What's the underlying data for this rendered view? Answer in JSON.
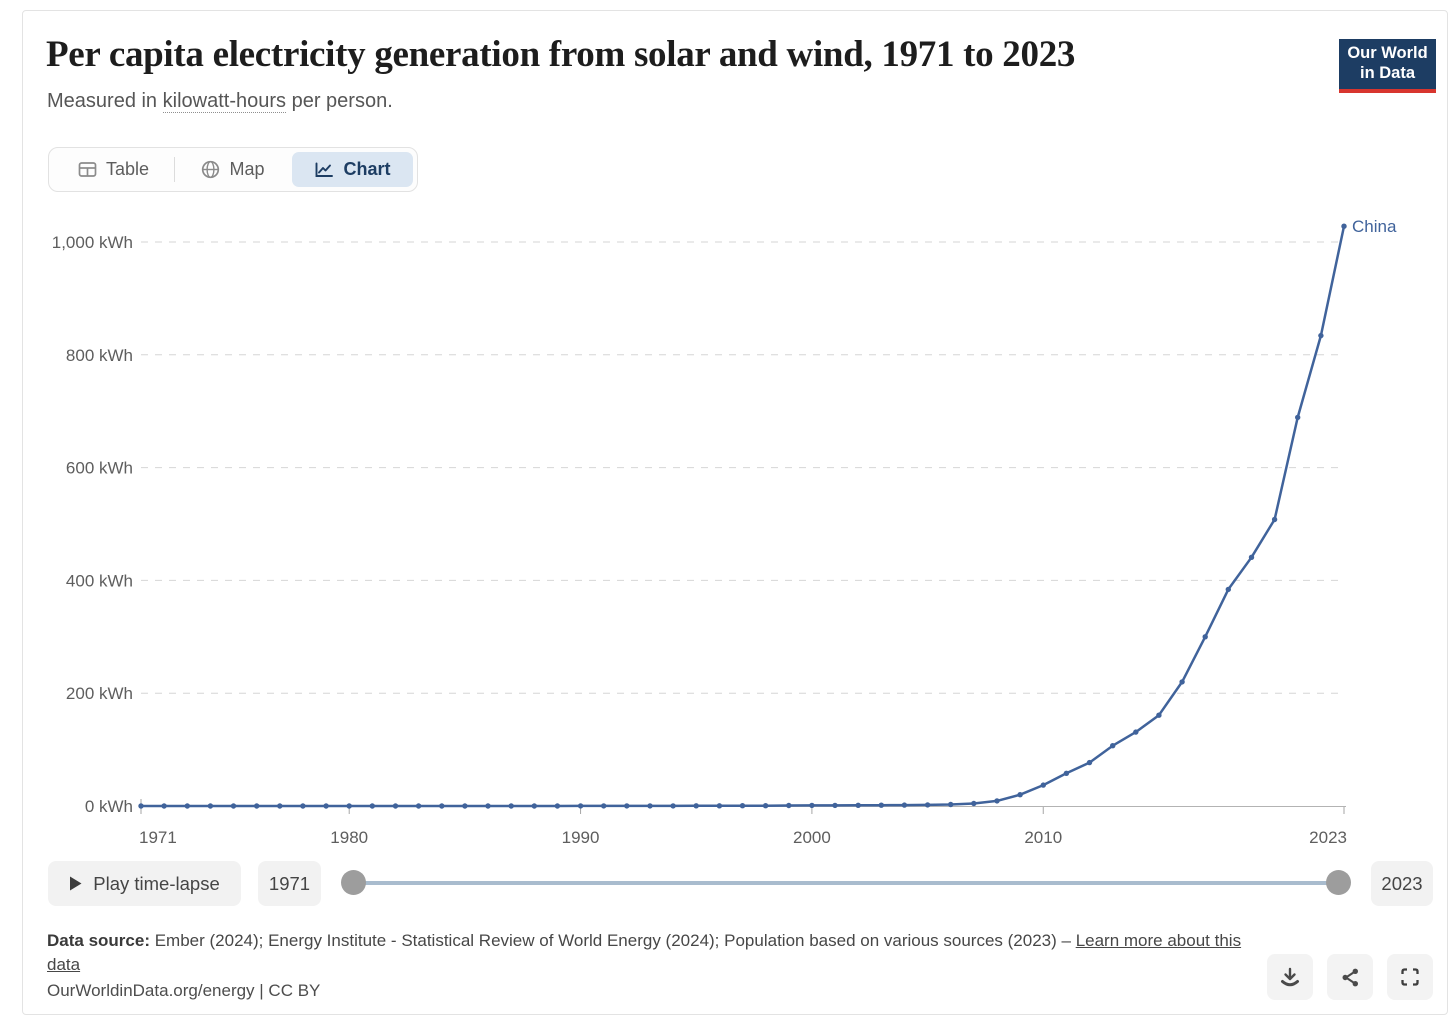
{
  "header": {
    "title": "Per capita electricity generation from solar and wind, 1971 to 2023",
    "subtitle_prefix": "Measured in ",
    "subtitle_link": "kilowatt-hours",
    "subtitle_suffix": " per person.",
    "logo_line1": "Our World",
    "logo_line2": "in Data"
  },
  "tabs": [
    {
      "label": "Table",
      "active": false
    },
    {
      "label": "Map",
      "active": false
    },
    {
      "label": "Chart",
      "active": true
    }
  ],
  "chart_data": {
    "type": "line",
    "title": "Per capita electricity generation from solar and wind, 1971 to 2023",
    "subtitle": "Measured in kilowatt-hours per person.",
    "xlabel": "",
    "ylabel": "kWh per person",
    "xlim": [
      1971,
      2023
    ],
    "ylim": [
      0,
      1000
    ],
    "yticks": [
      0,
      200,
      400,
      600,
      800,
      1000
    ],
    "ytick_labels": [
      "0 kWh",
      "200 kWh",
      "400 kWh",
      "600 kWh",
      "800 kWh",
      "1,000 kWh"
    ],
    "xticks": [
      1971,
      1980,
      1990,
      2000,
      2010,
      2023
    ],
    "grid": "horizontal-dashed",
    "legend_position": "end-of-line-label",
    "series": [
      {
        "name": "China",
        "color": "#40639b",
        "x": [
          1971,
          1972,
          1973,
          1974,
          1975,
          1976,
          1977,
          1978,
          1979,
          1980,
          1981,
          1982,
          1983,
          1984,
          1985,
          1986,
          1987,
          1988,
          1989,
          1990,
          1991,
          1992,
          1993,
          1994,
          1995,
          1996,
          1997,
          1998,
          1999,
          2000,
          2001,
          2002,
          2003,
          2004,
          2005,
          2006,
          2007,
          2008,
          2009,
          2010,
          2011,
          2012,
          2013,
          2014,
          2015,
          2016,
          2017,
          2018,
          2019,
          2020,
          2021,
          2022,
          2023
        ],
        "values": [
          0,
          0,
          0,
          0,
          0,
          0,
          0,
          0,
          0,
          0,
          0,
          0,
          0,
          0,
          0,
          0,
          0,
          0,
          0,
          0.1,
          0.1,
          0.1,
          0.2,
          0.2,
          0.3,
          0.4,
          0.5,
          0.6,
          0.8,
          1.0,
          1.1,
          1.3,
          1.4,
          1.6,
          1.9,
          2.6,
          4.4,
          9,
          20,
          37,
          58,
          77,
          107,
          131,
          161,
          220,
          300,
          384,
          441,
          508,
          689,
          834,
          1028
        ]
      }
    ]
  },
  "timeline": {
    "play_label": "Play time-lapse",
    "start_year": "1971",
    "end_year": "2023"
  },
  "footer": {
    "source_label": "Data source:",
    "source_text": " Ember (2024); Energy Institute - Statistical Review of World Energy (2024); Population based on various sources (2023) – ",
    "learn_more_label": "Learn more about this data",
    "citation": "OurWorldinData.org/energy | CC BY"
  },
  "colors": {
    "line": "#40639b",
    "accent_navy": "#1d3d63",
    "active_tab_bg": "#dbe6f2",
    "logo_red": "#d8352e",
    "slider_track": "#a9bcce",
    "slider_handle": "#9d9d9d"
  }
}
